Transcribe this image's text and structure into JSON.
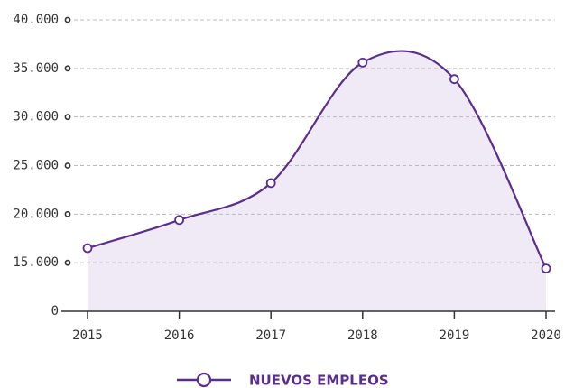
{
  "chart_data": {
    "type": "line",
    "categories": [
      "2015",
      "2016",
      "2017",
      "2018",
      "2019",
      "2020"
    ],
    "series": [
      {
        "name": "NUEVOS EMPLEOS",
        "color": "#5b2d8e",
        "fill": "#efeaf6",
        "values": [
          16500,
          19400,
          23200,
          35600,
          33900,
          14400
        ]
      }
    ],
    "ylim": [
      0,
      40000
    ],
    "axis_break": [
      0,
      10000
    ],
    "yticks": [
      0,
      {
        "value": 15000,
        "label": "15.000"
      },
      {
        "value": 20000,
        "label": "20.000"
      },
      {
        "value": 25000,
        "label": "25.000"
      },
      {
        "value": 30000,
        "label": "30.000"
      },
      {
        "value": 35000,
        "label": "35.000"
      },
      {
        "value": 40000,
        "label": "40.000"
      }
    ],
    "grid": true,
    "smooth": true,
    "legend": "bottom"
  }
}
